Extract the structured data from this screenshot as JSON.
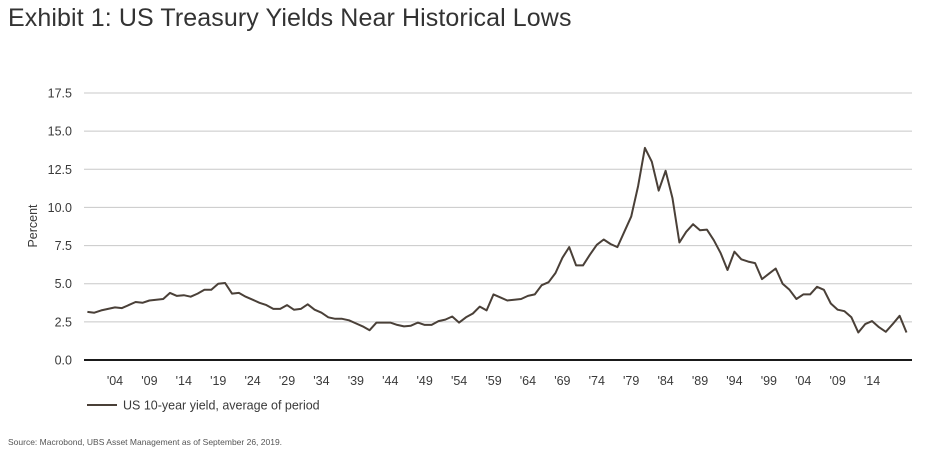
{
  "title": "Exhibit 1: US Treasury Yields Near Historical Lows",
  "source": "Source: Macrobond, UBS Asset Management as of September 26, 2019.",
  "chart_data": {
    "type": "line",
    "ylabel": "Percent",
    "xlabel": "",
    "xlim": [
      1899.5,
      2019.8
    ],
    "ylim": [
      0,
      17.5
    ],
    "y_ticks": [
      "0.0",
      "2.5",
      "5.0",
      "7.5",
      "10.0",
      "12.5",
      "15.0",
      "17.5"
    ],
    "x_ticks": [
      {
        "label": "'04",
        "year": 1904
      },
      {
        "label": "'09",
        "year": 1909
      },
      {
        "label": "'14",
        "year": 1914
      },
      {
        "label": "'19",
        "year": 1919
      },
      {
        "label": "'24",
        "year": 1924
      },
      {
        "label": "'29",
        "year": 1929
      },
      {
        "label": "'34",
        "year": 1934
      },
      {
        "label": "'39",
        "year": 1939
      },
      {
        "label": "'44",
        "year": 1944
      },
      {
        "label": "'49",
        "year": 1949
      },
      {
        "label": "'54",
        "year": 1954
      },
      {
        "label": "'59",
        "year": 1959
      },
      {
        "label": "'64",
        "year": 1964
      },
      {
        "label": "'69",
        "year": 1969
      },
      {
        "label": "'74",
        "year": 1974
      },
      {
        "label": "'79",
        "year": 1979
      },
      {
        "label": "'84",
        "year": 1984
      },
      {
        "label": "'89",
        "year": 1989
      },
      {
        "label": "'94",
        "year": 1994
      },
      {
        "label": "'99",
        "year": 1999
      },
      {
        "label": "'04",
        "year": 2004
      },
      {
        "label": "'09",
        "year": 2009
      },
      {
        "label": "'14",
        "year": 2014
      }
    ],
    "grid": "horizontal",
    "legend_position": "bottom-left",
    "series": [
      {
        "name": "US 10-year yield, average of period",
        "color": "#4a4038",
        "x": [
          1900,
          1901,
          1902,
          1903,
          1904,
          1905,
          1906,
          1907,
          1908,
          1909,
          1910,
          1911,
          1912,
          1913,
          1914,
          1915,
          1916,
          1917,
          1918,
          1919,
          1920,
          1921,
          1922,
          1923,
          1924,
          1925,
          1926,
          1927,
          1928,
          1929,
          1930,
          1931,
          1932,
          1933,
          1934,
          1935,
          1936,
          1937,
          1938,
          1939,
          1940,
          1941,
          1942,
          1943,
          1944,
          1945,
          1946,
          1947,
          1948,
          1949,
          1950,
          1951,
          1952,
          1953,
          1954,
          1955,
          1956,
          1957,
          1958,
          1959,
          1960,
          1961,
          1962,
          1963,
          1964,
          1965,
          1966,
          1967,
          1968,
          1969,
          1970,
          1971,
          1972,
          1973,
          1974,
          1975,
          1976,
          1977,
          1978,
          1979,
          1980,
          1981,
          1982,
          1983,
          1984,
          1985,
          1986,
          1987,
          1988,
          1989,
          1990,
          1991,
          1992,
          1993,
          1994,
          1995,
          1996,
          1997,
          1998,
          1999,
          2000,
          2001,
          2002,
          2003,
          2004,
          2005,
          2006,
          2007,
          2008,
          2009,
          2010,
          2011,
          2012,
          2013,
          2014,
          2015,
          2016,
          2017,
          2018,
          2019
        ],
        "values": [
          3.15,
          3.1,
          3.25,
          3.35,
          3.45,
          3.4,
          3.6,
          3.8,
          3.75,
          3.9,
          3.95,
          4.0,
          4.4,
          4.2,
          4.25,
          4.15,
          4.35,
          4.6,
          4.6,
          5.0,
          5.05,
          4.35,
          4.4,
          4.15,
          3.95,
          3.75,
          3.6,
          3.35,
          3.35,
          3.6,
          3.3,
          3.35,
          3.65,
          3.3,
          3.1,
          2.8,
          2.7,
          2.7,
          2.6,
          2.4,
          2.2,
          1.95,
          2.45,
          2.45,
          2.45,
          2.3,
          2.2,
          2.25,
          2.45,
          2.3,
          2.3,
          2.55,
          2.65,
          2.85,
          2.45,
          2.8,
          3.05,
          3.5,
          3.25,
          4.3,
          4.1,
          3.9,
          3.95,
          4.0,
          4.2,
          4.3,
          4.9,
          5.1,
          5.7,
          6.7,
          7.4,
          6.2,
          6.2,
          6.9,
          7.55,
          7.9,
          7.6,
          7.4,
          8.4,
          9.4,
          11.4,
          13.9,
          13.0,
          11.1,
          12.4,
          10.6,
          7.7,
          8.4,
          8.9,
          8.5,
          8.55,
          7.85,
          7.0,
          5.9,
          7.1,
          6.6,
          6.45,
          6.35,
          5.3,
          5.65,
          6.0,
          5.0,
          4.6,
          4.0,
          4.3,
          4.3,
          4.8,
          4.6,
          3.7,
          3.3,
          3.2,
          2.8,
          1.8,
          2.35,
          2.55,
          2.15,
          1.85,
          2.35,
          2.9,
          1.8
        ]
      }
    ]
  }
}
